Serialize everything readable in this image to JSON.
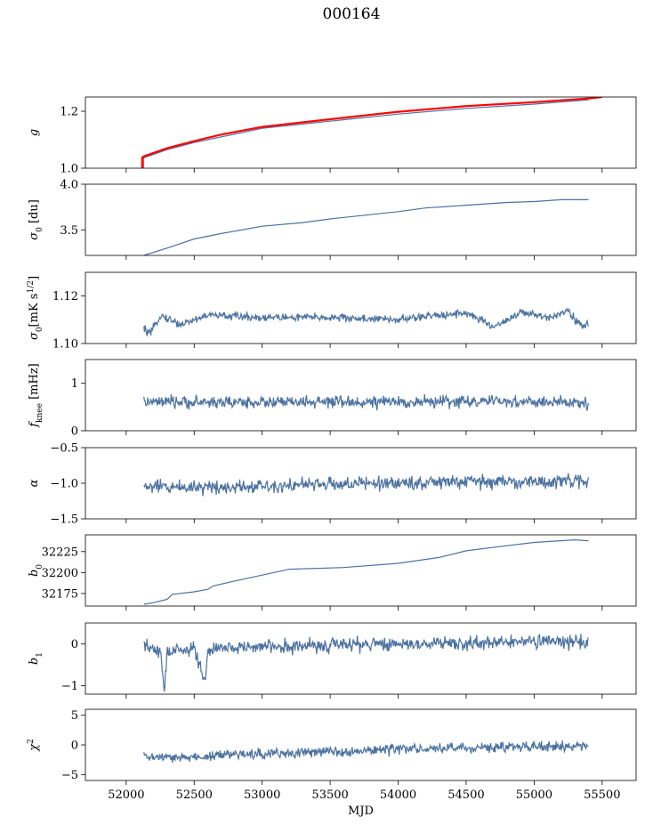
{
  "figure": {
    "title": "000164",
    "shared_xlabel": "MJD"
  },
  "chart_data": [
    {
      "type": "line",
      "ylabel": "g",
      "xlim": [
        51700,
        55750
      ],
      "ylim": [
        1.0,
        1.25
      ],
      "yticks": [
        1.0,
        1.2
      ],
      "ytick_labels": [
        "1.0",
        "1.2"
      ],
      "series": [
        {
          "color": "#4c72a0",
          "x": [
            52120,
            52300,
            52500,
            52700,
            53000,
            53500,
            54000,
            54500,
            55000,
            55400
          ],
          "y": [
            1.035,
            1.065,
            1.09,
            1.11,
            1.14,
            1.165,
            1.19,
            1.21,
            1.225,
            1.24
          ]
        },
        {
          "color": "#ff0000",
          "x": [
            52120,
            52300,
            52500,
            52700,
            53000,
            53500,
            54000,
            54500,
            55000,
            55400,
            55500
          ],
          "y": [
            1.04,
            1.07,
            1.095,
            1.118,
            1.145,
            1.172,
            1.198,
            1.218,
            1.232,
            1.245,
            1.25
          ]
        }
      ]
    },
    {
      "type": "line",
      "ylabel": "σ0 [du]",
      "xlim": [
        51700,
        55750
      ],
      "ylim": [
        3.22,
        4.0
      ],
      "yticks": [
        3.5,
        4.0
      ],
      "ytick_labels": [
        "3.5",
        "4.0"
      ],
      "series": [
        {
          "color": "#4c72a0",
          "x": [
            52130,
            52300,
            52500,
            52700,
            53000,
            53300,
            53500,
            54000,
            54200,
            54500,
            54800,
            55000,
            55200,
            55400
          ],
          "y": [
            3.22,
            3.3,
            3.4,
            3.46,
            3.54,
            3.58,
            3.62,
            3.7,
            3.74,
            3.77,
            3.8,
            3.81,
            3.83,
            3.83
          ]
        }
      ]
    },
    {
      "type": "line",
      "ylabel": "σ0[mK s^1/2]",
      "xlim": [
        51700,
        55750
      ],
      "ylim": [
        1.1,
        1.13
      ],
      "yticks": [
        1.1,
        1.12
      ],
      "ytick_labels": [
        "1.10",
        "1.12"
      ],
      "series": [
        {
          "color": "#4c72a0",
          "noise": 0.0012,
          "x": [
            52130,
            52180,
            52250,
            52400,
            52600,
            53000,
            53500,
            54000,
            54300,
            54500,
            54700,
            54900,
            55100,
            55250,
            55350,
            55400
          ],
          "y": [
            1.106,
            1.104,
            1.112,
            1.108,
            1.112,
            1.111,
            1.111,
            1.11,
            1.112,
            1.113,
            1.107,
            1.113,
            1.111,
            1.114,
            1.107,
            1.108
          ]
        }
      ]
    },
    {
      "type": "line",
      "ylabel": "f_knee [mHz]",
      "xlim": [
        51700,
        55750
      ],
      "ylim": [
        0,
        1.5
      ],
      "yticks": [
        0,
        1
      ],
      "ytick_labels": [
        "0",
        "1"
      ],
      "series": [
        {
          "color": "#4c72a0",
          "noise": 0.09,
          "x": [
            52130,
            52700,
            53300,
            53900,
            54500,
            55100,
            55400
          ],
          "y": [
            0.6,
            0.6,
            0.6,
            0.6,
            0.62,
            0.6,
            0.58
          ]
        }
      ]
    },
    {
      "type": "line",
      "ylabel": "α",
      "xlim": [
        51700,
        55750
      ],
      "ylim": [
        -1.5,
        -0.5
      ],
      "yticks": [
        -1.5,
        -1.0,
        -0.5
      ],
      "ytick_labels": [
        "−1.5",
        "−1.0",
        "−0.5"
      ],
      "series": [
        {
          "color": "#4c72a0",
          "noise": 0.07,
          "x": [
            52130,
            52700,
            53300,
            53900,
            54500,
            55100,
            55400
          ],
          "y": [
            -1.05,
            -1.05,
            -1.02,
            -1.0,
            -0.98,
            -0.98,
            -0.97
          ]
        }
      ]
    },
    {
      "type": "line",
      "ylabel": "b0",
      "xlim": [
        51700,
        55750
      ],
      "ylim": [
        32160,
        32245
      ],
      "yticks": [
        32175,
        32200,
        32225
      ],
      "ytick_labels": [
        "32175",
        "32200",
        "32225"
      ],
      "series": [
        {
          "color": "#4c72a0",
          "x": [
            52130,
            52200,
            52300,
            52340,
            52500,
            52600,
            52640,
            52800,
            53000,
            53200,
            53600,
            54000,
            54300,
            54500,
            54800,
            55000,
            55300,
            55400
          ],
          "y": [
            32162,
            32164,
            32168,
            32174,
            32177,
            32180,
            32184,
            32190,
            32197,
            32204,
            32206,
            32211,
            32218,
            32226,
            32232,
            32236,
            32239,
            32238
          ]
        }
      ]
    },
    {
      "type": "line",
      "ylabel": "b1",
      "xlim": [
        51700,
        55750
      ],
      "ylim": [
        -1.2,
        0.5
      ],
      "yticks": [
        -1,
        0
      ],
      "ytick_labels": [
        "−1",
        "0"
      ],
      "series": [
        {
          "color": "#4c72a0",
          "noise": 0.12,
          "x": [
            52130,
            52250,
            52280,
            52300,
            52500,
            52580,
            52600,
            52800,
            53300,
            53900,
            54500,
            55100,
            55400
          ],
          "y": [
            -0.05,
            -0.2,
            -1.1,
            -0.2,
            -0.1,
            -0.95,
            -0.15,
            -0.08,
            -0.05,
            0.0,
            0.02,
            0.05,
            0.05
          ]
        }
      ]
    },
    {
      "type": "line",
      "ylabel": "χ2",
      "xlabel": "MJD",
      "xlim": [
        51700,
        55750
      ],
      "ylim": [
        -6,
        6
      ],
      "xticks": [
        52000,
        52500,
        53000,
        53500,
        54000,
        54500,
        55000,
        55500
      ],
      "xtick_labels": [
        "52000",
        "52500",
        "53000",
        "53500",
        "54000",
        "54500",
        "55000",
        "55500"
      ],
      "yticks": [
        -5,
        0,
        5
      ],
      "ytick_labels": [
        "−5",
        "0",
        "5"
      ],
      "series": [
        {
          "color": "#4c72a0",
          "noise": 0.6,
          "x": [
            52130,
            52400,
            52800,
            53300,
            53900,
            54500,
            55100,
            55400
          ],
          "y": [
            -2.0,
            -2.2,
            -1.6,
            -1.3,
            -0.8,
            -0.5,
            -0.3,
            -0.3
          ]
        }
      ]
    }
  ]
}
